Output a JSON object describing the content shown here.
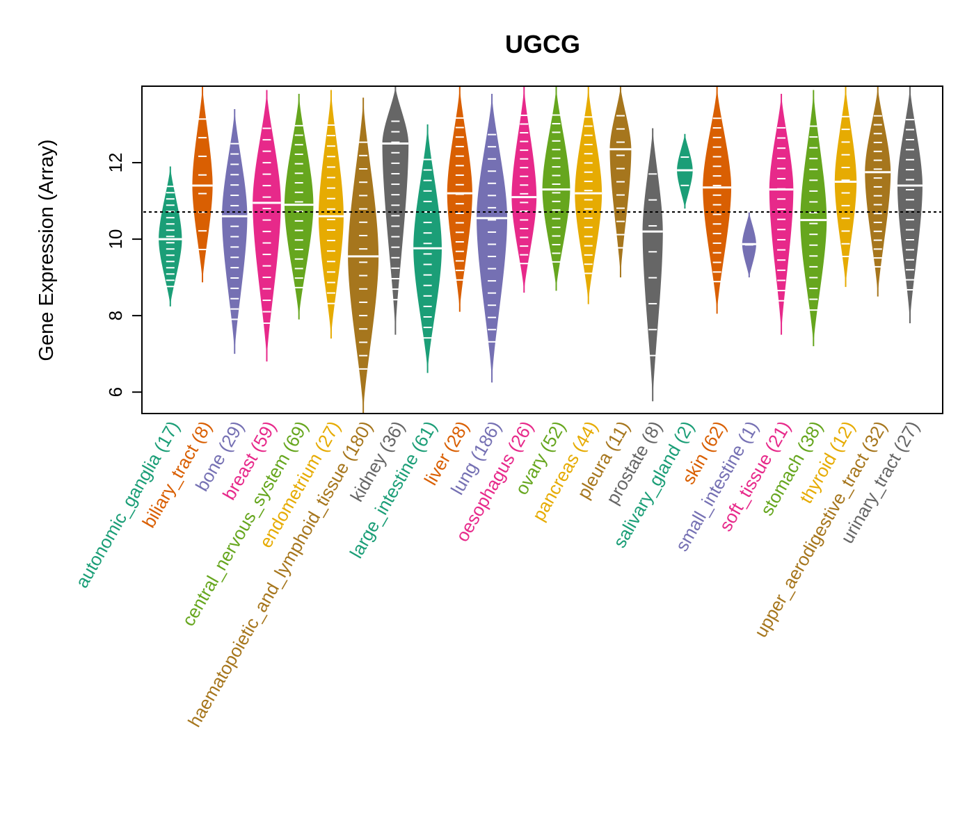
{
  "chart_data": {
    "type": "violin",
    "title": "UGCG",
    "xlabel": "",
    "ylabel": "Gene Expression (Array)",
    "ylim": [
      5.44,
      14.0
    ],
    "yticks": [
      6,
      8,
      10,
      12
    ],
    "reference_line": 10.71,
    "grid": false,
    "legend": "none",
    "categories": [
      {
        "name": "autonomic_ganglia",
        "n": 17,
        "color": "#1B9E77",
        "min": 8.24,
        "max": 11.9,
        "median": 10.0
      },
      {
        "name": "biliary_tract",
        "n": 8,
        "color": "#D95F02",
        "min": 8.87,
        "max": 14.0,
        "median": 11.4
      },
      {
        "name": "bone",
        "n": 29,
        "color": "#7570B3",
        "min": 7.0,
        "max": 13.4,
        "median": 10.6
      },
      {
        "name": "breast",
        "n": 59,
        "color": "#E7298A",
        "min": 6.8,
        "max": 13.9,
        "median": 10.95
      },
      {
        "name": "central_nervous_system",
        "n": 69,
        "color": "#66A61E",
        "min": 7.9,
        "max": 13.8,
        "median": 10.9
      },
      {
        "name": "endometrium",
        "n": 27,
        "color": "#E6AB02",
        "min": 7.4,
        "max": 13.9,
        "median": 10.6
      },
      {
        "name": "haematopoietic_and_lymphoid_tissue",
        "n": 180,
        "color": "#A6761D",
        "min": 5.44,
        "max": 13.7,
        "median": 9.55
      },
      {
        "name": "kidney",
        "n": 36,
        "color": "#666666",
        "min": 7.5,
        "max": 14.0,
        "median": 12.5
      },
      {
        "name": "large_intestine",
        "n": 61,
        "color": "#1B9E77",
        "min": 6.5,
        "max": 13.0,
        "median": 9.76
      },
      {
        "name": "liver",
        "n": 28,
        "color": "#D95F02",
        "min": 8.1,
        "max": 14.0,
        "median": 11.2
      },
      {
        "name": "lung",
        "n": 186,
        "color": "#7570B3",
        "min": 6.25,
        "max": 13.8,
        "median": 10.55
      },
      {
        "name": "oesophagus",
        "n": 26,
        "color": "#E7298A",
        "min": 8.6,
        "max": 14.0,
        "median": 11.1
      },
      {
        "name": "ovary",
        "n": 52,
        "color": "#66A61E",
        "min": 8.65,
        "max": 14.0,
        "median": 11.3
      },
      {
        "name": "pancreas",
        "n": 44,
        "color": "#E6AB02",
        "min": 8.3,
        "max": 14.0,
        "median": 11.2
      },
      {
        "name": "pleura",
        "n": 11,
        "color": "#A6761D",
        "min": 9.0,
        "max": 14.0,
        "median": 12.35
      },
      {
        "name": "prostate",
        "n": 8,
        "color": "#666666",
        "min": 5.76,
        "max": 12.9,
        "median": 10.2
      },
      {
        "name": "salivary_gland",
        "n": 2,
        "color": "#1B9E77",
        "min": 10.8,
        "max": 12.75,
        "median": 11.8
      },
      {
        "name": "skin",
        "n": 62,
        "color": "#D95F02",
        "min": 8.05,
        "max": 14.0,
        "median": 11.35
      },
      {
        "name": "small_intestine",
        "n": 1,
        "color": "#7570B3",
        "min": 9.0,
        "max": 10.7,
        "median": 9.87
      },
      {
        "name": "soft_tissue",
        "n": 21,
        "color": "#E7298A",
        "min": 7.5,
        "max": 13.8,
        "median": 11.3
      },
      {
        "name": "stomach",
        "n": 38,
        "color": "#66A61E",
        "min": 7.2,
        "max": 13.9,
        "median": 10.5
      },
      {
        "name": "thyroid",
        "n": 12,
        "color": "#E6AB02",
        "min": 8.75,
        "max": 14.0,
        "median": 11.5
      },
      {
        "name": "upper_aerodigestive_tract",
        "n": 32,
        "color": "#A6761D",
        "min": 8.5,
        "max": 14.0,
        "median": 11.75
      },
      {
        "name": "urinary_tract",
        "n": 27,
        "color": "#666666",
        "min": 7.8,
        "max": 14.0,
        "median": 11.4
      }
    ]
  }
}
